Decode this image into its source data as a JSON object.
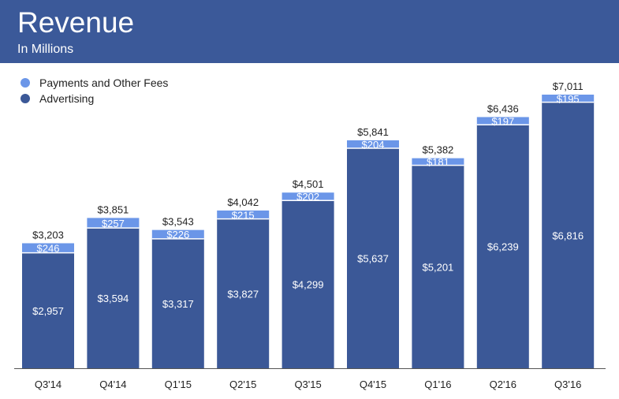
{
  "header": {
    "title": "Revenue",
    "subtitle": "In Millions"
  },
  "colors": {
    "header": "#3b5999",
    "advertising": "#3b5897",
    "payments": "#6b96e8"
  },
  "chart_data": {
    "type": "bar",
    "stacked": true,
    "categories": [
      "Q3'14",
      "Q4'14",
      "Q1'15",
      "Q2'15",
      "Q3'15",
      "Q4'15",
      "Q1'16",
      "Q2'16",
      "Q3'16"
    ],
    "series": [
      {
        "name": "Advertising",
        "values": [
          2957,
          3594,
          3317,
          3827,
          4299,
          5637,
          5201,
          6239,
          6816
        ],
        "labels": [
          "$2,957",
          "$3,594",
          "$3,317",
          "$3,827",
          "$4,299",
          "$5,637",
          "$5,201",
          "$6,239",
          "$6,816"
        ]
      },
      {
        "name": "Payments and Other Fees",
        "values": [
          246,
          257,
          226,
          215,
          202,
          204,
          181,
          197,
          195
        ],
        "labels": [
          "$246",
          "$257",
          "$226",
          "$215",
          "$202",
          "$204",
          "$181",
          "$197",
          "$195"
        ]
      }
    ],
    "totals": [
      3203,
      3851,
      3543,
      4042,
      4501,
      5841,
      5382,
      6436,
      7011
    ],
    "total_labels": [
      "$3,203",
      "$3,851",
      "$3,543",
      "$4,042",
      "$4,501",
      "$5,841",
      "$5,382",
      "$6,436",
      "$7,011"
    ],
    "legend": [
      "Payments and Other Fees",
      "Advertising"
    ],
    "legend_position": "top-left",
    "ylim": [
      0,
      7011
    ],
    "grid": false
  }
}
